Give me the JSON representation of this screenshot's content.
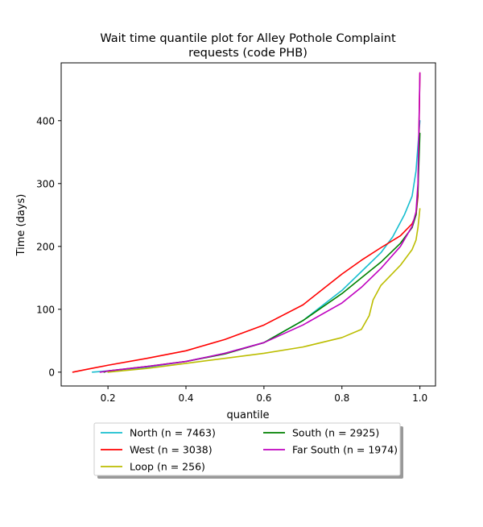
{
  "chart_data": {
    "type": "line",
    "title": "Wait time quantile plot for Alley Pothole Complaint requests (code PHB)",
    "title_lines": [
      "Wait time quantile plot for Alley Pothole Complaint",
      "requests (code PHB)"
    ],
    "xlabel": "quantile",
    "ylabel": "Time (days)",
    "xlim": [
      0.08,
      1.04
    ],
    "ylim": [
      -22,
      492
    ],
    "x_ticks": [
      0.2,
      0.4,
      0.6,
      0.8,
      1.0
    ],
    "x_tick_labels": [
      "0.2",
      "0.4",
      "0.6",
      "0.8",
      "1.0"
    ],
    "y_ticks": [
      0,
      100,
      200,
      300,
      400
    ],
    "y_tick_labels": [
      "0",
      "100",
      "200",
      "300",
      "400"
    ],
    "grid": false,
    "legend_position": "below the plot, centered, two columns",
    "series": [
      {
        "name": "North (n = 7463)",
        "color": "#17becf",
        "points": [
          [
            0.16,
            0
          ],
          [
            0.2,
            2
          ],
          [
            0.3,
            8
          ],
          [
            0.4,
            17
          ],
          [
            0.5,
            30
          ],
          [
            0.6,
            47
          ],
          [
            0.7,
            82
          ],
          [
            0.8,
            130
          ],
          [
            0.85,
            160
          ],
          [
            0.9,
            190
          ],
          [
            0.93,
            215
          ],
          [
            0.96,
            250
          ],
          [
            0.98,
            280
          ],
          [
            0.99,
            320
          ],
          [
            0.995,
            360
          ],
          [
            1.0,
            400
          ]
        ]
      },
      {
        "name": "West (n = 3038)",
        "color": "#ff0000",
        "points": [
          [
            0.11,
            0
          ],
          [
            0.15,
            5
          ],
          [
            0.2,
            11
          ],
          [
            0.3,
            22
          ],
          [
            0.4,
            34
          ],
          [
            0.5,
            52
          ],
          [
            0.6,
            75
          ],
          [
            0.7,
            107
          ],
          [
            0.8,
            156
          ],
          [
            0.85,
            178
          ],
          [
            0.9,
            198
          ],
          [
            0.95,
            217
          ],
          [
            0.98,
            236
          ],
          [
            0.99,
            250
          ],
          [
            0.995,
            280
          ],
          [
            1.0,
            476
          ]
        ]
      },
      {
        "name": "Loop (n = 256)",
        "color": "#bcbd00",
        "points": [
          [
            0.2,
            0
          ],
          [
            0.3,
            6
          ],
          [
            0.4,
            14
          ],
          [
            0.5,
            22
          ],
          [
            0.6,
            30
          ],
          [
            0.7,
            40
          ],
          [
            0.8,
            55
          ],
          [
            0.85,
            68
          ],
          [
            0.87,
            90
          ],
          [
            0.88,
            115
          ],
          [
            0.9,
            138
          ],
          [
            0.95,
            170
          ],
          [
            0.98,
            195
          ],
          [
            0.99,
            210
          ],
          [
            0.995,
            230
          ],
          [
            1.0,
            260
          ]
        ]
      },
      {
        "name": "South (n = 2925)",
        "color": "#008000",
        "points": [
          [
            0.19,
            0
          ],
          [
            0.2,
            2
          ],
          [
            0.3,
            9
          ],
          [
            0.4,
            17
          ],
          [
            0.5,
            29
          ],
          [
            0.6,
            47
          ],
          [
            0.7,
            82
          ],
          [
            0.8,
            125
          ],
          [
            0.85,
            150
          ],
          [
            0.9,
            175
          ],
          [
            0.95,
            205
          ],
          [
            0.98,
            230
          ],
          [
            0.99,
            250
          ],
          [
            0.995,
            290
          ],
          [
            1.0,
            380
          ]
        ]
      },
      {
        "name": "Far South (n = 1974)",
        "color": "#bf00bf",
        "points": [
          [
            0.18,
            0
          ],
          [
            0.2,
            2
          ],
          [
            0.3,
            9
          ],
          [
            0.4,
            17
          ],
          [
            0.5,
            30
          ],
          [
            0.6,
            47
          ],
          [
            0.7,
            75
          ],
          [
            0.8,
            110
          ],
          [
            0.85,
            135
          ],
          [
            0.9,
            165
          ],
          [
            0.95,
            200
          ],
          [
            0.98,
            232
          ],
          [
            0.99,
            255
          ],
          [
            0.995,
            300
          ],
          [
            1.0,
            476
          ]
        ]
      }
    ]
  }
}
